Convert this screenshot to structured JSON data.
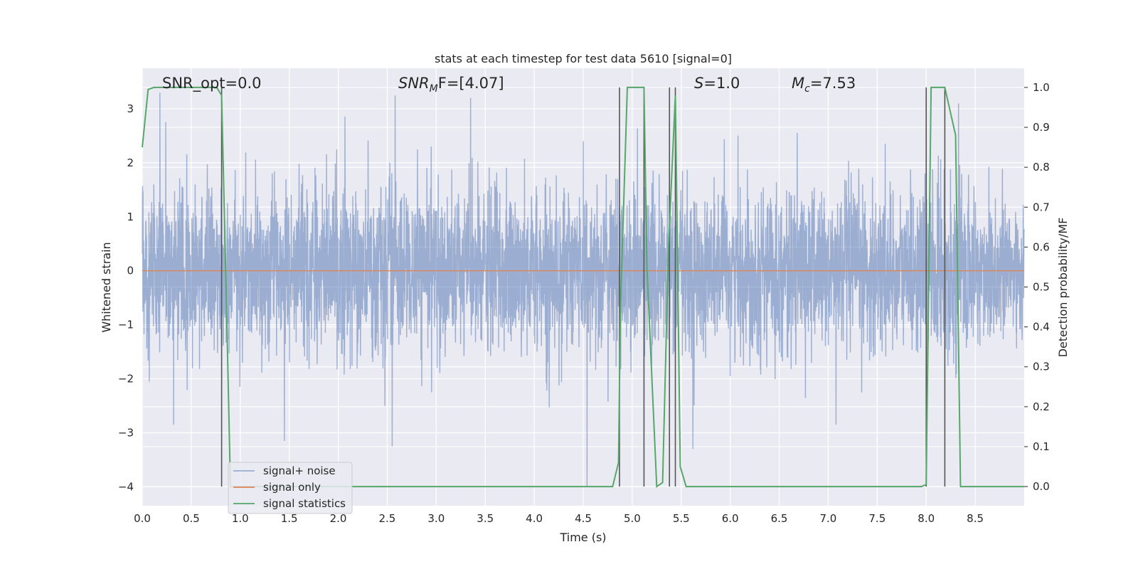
{
  "chart_data": {
    "type": "line",
    "title": "stats at each timestep for test data 5610 [signal=0]",
    "xlabel": "Time (s)",
    "ylabel": "Whitened strain",
    "y2label": "Detection probability/MF",
    "xlim": [
      0,
      9.0
    ],
    "ylim": [
      -4.35,
      3.75
    ],
    "y2lim": [
      -0.048,
      1.048
    ],
    "x_ticks": [
      0.0,
      0.5,
      1.0,
      1.5,
      2.0,
      2.5,
      3.0,
      3.5,
      4.0,
      4.5,
      5.0,
      5.5,
      6.0,
      6.5,
      7.0,
      7.5,
      8.0,
      8.5
    ],
    "x_tick_labels": [
      "0.0",
      "0.5",
      "1.0",
      "1.5",
      "2.0",
      "2.5",
      "3.0",
      "3.5",
      "4.0",
      "4.5",
      "5.0",
      "5.5",
      "6.0",
      "6.5",
      "7.0",
      "7.5",
      "8.0",
      "8.5"
    ],
    "y_ticks": [
      -4,
      -3,
      -2,
      -1,
      0,
      1,
      2,
      3
    ],
    "y_tick_labels": [
      "−4",
      "−3",
      "−2",
      "−1",
      "0",
      "1",
      "2",
      "3"
    ],
    "y2_ticks": [
      0.0,
      0.1,
      0.2,
      0.3,
      0.4,
      0.5,
      0.6,
      0.7,
      0.8,
      0.9,
      1.0
    ],
    "y2_tick_labels": [
      "0.0",
      "0.1",
      "0.2",
      "0.3",
      "0.4",
      "0.5",
      "0.6",
      "0.7",
      "0.8",
      "0.9",
      "1.0"
    ],
    "grid": true,
    "legend_position": "lower-left",
    "annotations": [
      "SNR_opt=0.0",
      "SNR",
      "M",
      "F=[4.07]",
      "S",
      "=1.0",
      "M",
      "c",
      "=7.53"
    ],
    "series": [
      {
        "name": "signal+ noise",
        "color": "#4c72b0",
        "noise_std": 0.75,
        "noise_peaks": [
          {
            "x": 0.18,
            "y": 3.3
          },
          {
            "x": 2.58,
            "y": 3.25
          },
          {
            "x": 3.35,
            "y": 3.2
          },
          {
            "x": 4.5,
            "y": 2.4
          },
          {
            "x": 8.33,
            "y": 3.1
          },
          {
            "x": 1.45,
            "y": -3.15
          },
          {
            "x": 2.55,
            "y": -3.25
          },
          {
            "x": 4.54,
            "y": -4.0
          },
          {
            "x": 7.08,
            "y": -2.85
          },
          {
            "x": 0.32,
            "y": -2.85
          },
          {
            "x": 5.62,
            "y": -3.3
          }
        ]
      },
      {
        "name": "signal only",
        "color": "#dd8452",
        "x": [
          0,
          9.0
        ],
        "y": [
          0,
          0
        ]
      },
      {
        "name": "signal statistics",
        "color": "#55a868",
        "axis": "right",
        "x": [
          0.0,
          0.06,
          0.12,
          0.76,
          0.81,
          0.86,
          0.9,
          4.8,
          4.86,
          4.88,
          4.95,
          5.12,
          5.15,
          5.25,
          5.31,
          5.37,
          5.44,
          5.49,
          5.55,
          5.7,
          7.95,
          8.0,
          8.05,
          8.19,
          8.3,
          8.35,
          9.0
        ],
        "y": [
          0.85,
          0.995,
          1.0,
          1.0,
          0.98,
          0.45,
          0.0,
          0.0,
          0.06,
          0.45,
          1.0,
          1.0,
          0.55,
          0.0,
          0.01,
          0.6,
          0.98,
          0.05,
          0.0,
          0.0,
          0.0,
          0.005,
          1.0,
          1.0,
          0.88,
          0.0,
          0.0
        ]
      }
    ],
    "vlines": [
      0.81,
      4.87,
      5.12,
      5.38,
      5.44,
      8.0,
      8.19
    ],
    "vlines_color": "#555555"
  }
}
